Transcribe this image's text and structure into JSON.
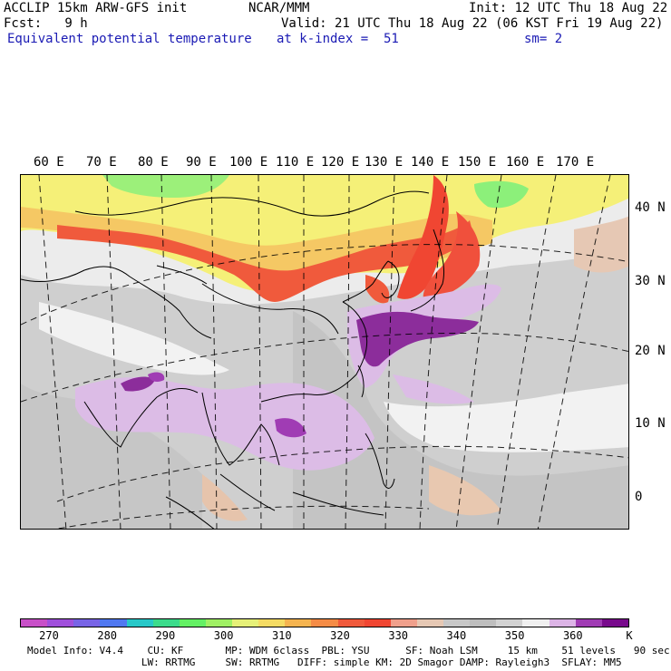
{
  "header": {
    "model_line": "ACCLIP 15km ARW-GFS init",
    "org": "NCAR/MMM",
    "init": "Init: 12 UTC Thu 18 Aug 22",
    "fcst": "Fcst:   9 h",
    "valid": "Valid: 21 UTC Thu 18 Aug 22 (06 KST Fri 19 Aug 22)",
    "field": "Equivalent potential temperature",
    "level": "at k-index =  51",
    "smooth": "sm= 2"
  },
  "map": {
    "lon_labels": [
      "60 E",
      "70 E",
      "80 E",
      "90 E",
      "100 E",
      "110 E",
      "120 E",
      "130 E",
      "140 E",
      "150 E",
      "160 E",
      "170 E"
    ],
    "lat_labels": [
      "40 N",
      "30 N",
      "20 N",
      "10 N",
      "0"
    ],
    "colors": {
      "ocean_gray": "#c8c8c8",
      "land_light": "#f0f0f0",
      "warm_red": "#f0503c",
      "orange": "#f5a050",
      "yellow": "#f5f078",
      "green": "#78f078",
      "lavender": "#dcbce6",
      "purple": "#8c2d9b"
    }
  },
  "colorbar": {
    "unit": "K",
    "colors": [
      "#c850c8",
      "#a050dc",
      "#7864e6",
      "#5078f0",
      "#28c8c8",
      "#3cdc8c",
      "#64f064",
      "#a0f064",
      "#e6f078",
      "#f5dc64",
      "#f5b450",
      "#f58c46",
      "#f05a3c",
      "#f04632",
      "#f0a08c",
      "#e6c8b4",
      "#c8c8c8",
      "#bebebe",
      "#d2d2d2",
      "#f0f0f0",
      "#dcb4e6",
      "#a03cb4",
      "#780a8c"
    ],
    "ticks": [
      "270",
      "280",
      "290",
      "300",
      "310",
      "320",
      "330",
      "340",
      "350",
      "360"
    ]
  },
  "footer": {
    "line1": "Model Info: V4.4    CU: KF       MP: WDM 6class  PBL: YSU      SF: Noah LSM     15 km    51 levels   90 sec",
    "line2": "                   LW: RRTMG     SW: RRTMG   DIFF: simple KM: 2D Smagor DAMP: Rayleigh3  SFLAY: MM5"
  }
}
